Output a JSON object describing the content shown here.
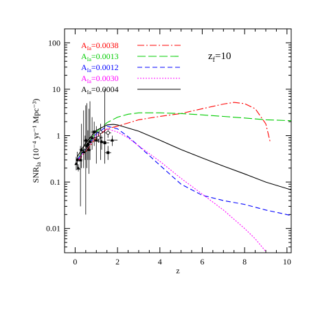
{
  "chart_data": {
    "type": "line",
    "xlabel": "z",
    "ylabel": "SNR",
    "ylabel_sub": "Ia",
    "ylabel_units": "(10⁻⁴ yr⁻¹ Mpc⁻³)",
    "xlim": [
      -0.5,
      10.2
    ],
    "ylim": [
      0.003,
      200
    ],
    "yscale": "log",
    "x_ticks": [
      "0",
      "2",
      "4",
      "6",
      "8",
      "10"
    ],
    "y_ticks": [
      "0.01",
      "0.1",
      "1",
      "10",
      "100"
    ],
    "annotation": {
      "main": "z",
      "sub": "f",
      "rest": "=10"
    },
    "legend_placement": "top-right",
    "series": [
      {
        "name": "A_Ia=0.0038",
        "label_main": "A",
        "label_sub": "Ia",
        "label_rest": "=0.0038",
        "color": "#ff0000",
        "dash": "10,3,2,3",
        "x": [
          0.1,
          0.5,
          1.0,
          1.5,
          2.0,
          3.0,
          4.0,
          5.0,
          6.0,
          7.0,
          7.5,
          8.0,
          8.5,
          9.0,
          9.2
        ],
        "y": [
          0.28,
          0.45,
          0.9,
          1.4,
          1.6,
          2.2,
          2.6,
          3.0,
          3.8,
          4.8,
          5.2,
          4.9,
          3.8,
          1.8,
          0.75
        ]
      },
      {
        "name": "A_Ia=0.0013",
        "label_main": "A",
        "label_sub": "Ia",
        "label_rest": "=0.0013",
        "color": "#00cc00",
        "dash": "12,4",
        "x": [
          0.1,
          0.5,
          1.0,
          1.5,
          2.0,
          2.5,
          3.0,
          4.0,
          5.0,
          6.0,
          7.0,
          8.0,
          9.0,
          10.2
        ],
        "y": [
          0.3,
          0.6,
          1.2,
          1.9,
          2.5,
          2.9,
          3.1,
          3.1,
          3.0,
          2.8,
          2.6,
          2.4,
          2.2,
          2.1
        ]
      },
      {
        "name": "A_Ia=0.0012",
        "label_main": "A",
        "label_sub": "Ia",
        "label_rest": "=0.0012",
        "color": "#0000ff",
        "dash": "7,4",
        "x": [
          0.1,
          0.5,
          1.0,
          1.5,
          2.0,
          2.5,
          3.0,
          4.0,
          5.0,
          6.0,
          7.0,
          8.0,
          9.0,
          10.2
        ],
        "y": [
          0.3,
          0.55,
          1.1,
          1.6,
          1.4,
          0.95,
          0.6,
          0.23,
          0.09,
          0.052,
          0.04,
          0.033,
          0.025,
          0.019
        ]
      },
      {
        "name": "A_Ia=0.0030",
        "label_main": "A",
        "label_sub": "Ia",
        "label_rest": "=0.0030",
        "color": "#ff00ff",
        "dash": "2,2",
        "x": [
          0.1,
          0.5,
          1.0,
          1.5,
          2.0,
          2.5,
          3.0,
          4.0,
          5.0,
          6.0,
          7.0,
          8.0,
          8.5,
          9.0
        ],
        "y": [
          0.28,
          0.5,
          1.0,
          1.4,
          1.2,
          0.9,
          0.6,
          0.28,
          0.12,
          0.055,
          0.025,
          0.01,
          0.006,
          0.0032
        ]
      },
      {
        "name": "A_Ia=0.0004",
        "label_main": "A",
        "label_sub": "Ia",
        "label_rest": "=0.0004",
        "color": "#000000",
        "dash": "",
        "x": [
          0.1,
          0.5,
          1.0,
          1.5,
          1.8,
          2.0,
          3.0,
          4.0,
          5.0,
          6.0,
          7.0,
          8.0,
          9.0,
          10.2
        ],
        "y": [
          0.35,
          0.7,
          1.3,
          1.7,
          1.75,
          1.7,
          1.25,
          0.8,
          0.5,
          0.33,
          0.22,
          0.15,
          0.1,
          0.068
        ]
      }
    ],
    "observations": [
      {
        "x": 0.05,
        "y": 0.25,
        "xerr": 0.05,
        "ylo": 0.18,
        "yhi": 0.35,
        "marker": "triangle"
      },
      {
        "x": 0.1,
        "y": 0.3,
        "xerr": 0.05,
        "ylo": 0.2,
        "yhi": 0.45,
        "marker": "square"
      },
      {
        "x": 0.15,
        "y": 0.2,
        "xerr": 0.05,
        "ylo": 0.17,
        "yhi": 0.24,
        "marker": "triangle"
      },
      {
        "x": 0.25,
        "y": 0.3,
        "xerr": 0.1,
        "ylo": 0.03,
        "yhi": 0.6,
        "marker": "triangle"
      },
      {
        "x": 0.3,
        "y": 0.5,
        "xerr": 0.1,
        "ylo": 0.2,
        "yhi": 1.8,
        "marker": "triangle"
      },
      {
        "x": 0.4,
        "y": 0.45,
        "xerr": 0.1,
        "ylo": 0.2,
        "yhi": 3.5,
        "marker": "triangle"
      },
      {
        "x": 0.47,
        "y": 0.55,
        "xerr": 0.1,
        "ylo": 0.3,
        "yhi": 1.0,
        "marker": "circle"
      },
      {
        "x": 0.5,
        "y": 0.8,
        "xerr": 0.1,
        "ylo": 0.02,
        "yhi": 4.5,
        "marker": "triangle"
      },
      {
        "x": 0.55,
        "y": 0.6,
        "xerr": 0.1,
        "ylo": 0.2,
        "yhi": 5.0,
        "marker": "triangle"
      },
      {
        "x": 0.6,
        "y": 0.65,
        "xerr": 0.1,
        "ylo": 0.3,
        "yhi": 1.3,
        "marker": "square"
      },
      {
        "x": 0.65,
        "y": 0.5,
        "xerr": 0.1,
        "ylo": 0.15,
        "yhi": 3.8,
        "marker": "triangle"
      },
      {
        "x": 0.7,
        "y": 0.75,
        "xerr": 0.1,
        "ylo": 0.3,
        "yhi": 5.5,
        "marker": "triangle"
      },
      {
        "x": 0.8,
        "y": 0.9,
        "xerr": 0.15,
        "ylo": 0.5,
        "yhi": 2.5,
        "marker": "triangle"
      },
      {
        "x": 0.9,
        "y": 1.2,
        "xerr": 0.15,
        "ylo": 0.6,
        "yhi": 2.0,
        "marker": "square"
      },
      {
        "x": 1.0,
        "y": 0.8,
        "xerr": 0.15,
        "ylo": 0.25,
        "yhi": 1.6,
        "marker": "triangle"
      },
      {
        "x": 1.1,
        "y": 0.9,
        "xerr": 0.2,
        "ylo": 0.7,
        "yhi": 1.2,
        "marker": "circle"
      },
      {
        "x": 1.2,
        "y": 1.2,
        "xerr": 0.2,
        "ylo": 0.3,
        "yhi": 1.8,
        "marker": "circle"
      },
      {
        "x": 1.25,
        "y": 0.75,
        "xerr": 0.2,
        "ylo": 0.5,
        "yhi": 1.0,
        "marker": "triangle"
      },
      {
        "x": 1.4,
        "y": 0.7,
        "xerr": 0.2,
        "ylo": 0.25,
        "yhi": 10.0,
        "marker": "square"
      },
      {
        "x": 1.55,
        "y": 0.43,
        "xerr": 0.15,
        "ylo": 0.3,
        "yhi": 0.6,
        "marker": "square"
      },
      {
        "x": 1.55,
        "y": 1.15,
        "xerr": 0.15,
        "ylo": 0.9,
        "yhi": 1.4,
        "marker": "circle"
      },
      {
        "x": 1.75,
        "y": 0.8,
        "xerr": 0.25,
        "ylo": 0.6,
        "yhi": 1.0,
        "marker": "triangle"
      }
    ]
  }
}
